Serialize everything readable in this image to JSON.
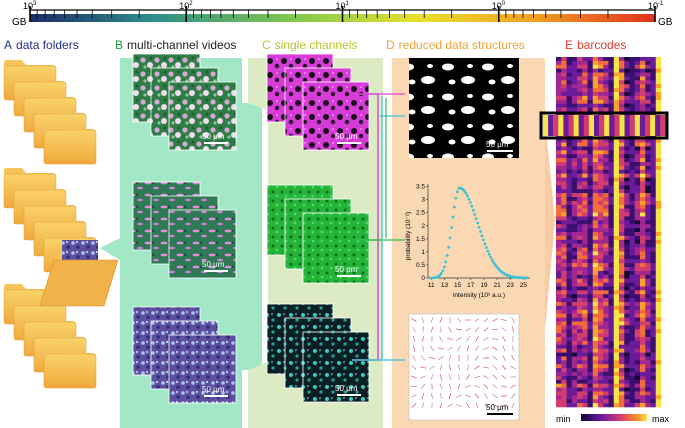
{
  "scale": {
    "unit_left": "GB",
    "unit_right": "GB",
    "major_ticks": [
      {
        "base": "10",
        "exp": "3",
        "pos": 0.0
      },
      {
        "base": "10",
        "exp": "2",
        "pos": 0.25
      },
      {
        "base": "10",
        "exp": "1",
        "pos": 0.5
      },
      {
        "base": "10",
        "exp": "0",
        "pos": 0.75
      },
      {
        "base": "10",
        "exp": "-1",
        "pos": 1.0
      }
    ],
    "gradient_colors": [
      "#1d2b6b",
      "#2f8f8a",
      "#7ec850",
      "#e8e12a",
      "#f2a31f",
      "#e0301e"
    ]
  },
  "panels": [
    {
      "letter": "A",
      "title": "data folders",
      "letter_color": "#21308a",
      "title_color": "#21308a"
    },
    {
      "letter": "B",
      "title": "multi-channel videos",
      "letter_color": "#1a9a3a",
      "title_color": "#222222"
    },
    {
      "letter": "C",
      "title": "single channels",
      "letter_color": "#b9c62a",
      "title_color": "#b9c62a"
    },
    {
      "letter": "D",
      "title": "reduced data structures",
      "letter_color": "#f0a23a",
      "title_color": "#f0a23a"
    },
    {
      "letter": "E",
      "title": "barcodes",
      "letter_color": "#e23a2a",
      "title_color": "#e23a2a"
    }
  ],
  "scalebar_label": "50 μm",
  "plot": {
    "ylabel": "probability (10⁻²)",
    "xlabel": "intensity (10³ a.u.)",
    "yticks": [
      "0",
      "0.5",
      "1",
      "1.5",
      "2",
      "2.5",
      "3",
      "3.5"
    ],
    "xticks": [
      "11",
      "13",
      "15",
      "17",
      "19",
      "21",
      "23",
      "25"
    ],
    "color": "#3cc3d3"
  },
  "barcode": {
    "min_label": "min",
    "max_label": "max",
    "colormap": [
      "#140b34",
      "#3b0f6f",
      "#6a1b9a",
      "#a2288f",
      "#d23d6f",
      "#f26b3a",
      "#f9a12d",
      "#f4e44b"
    ]
  }
}
